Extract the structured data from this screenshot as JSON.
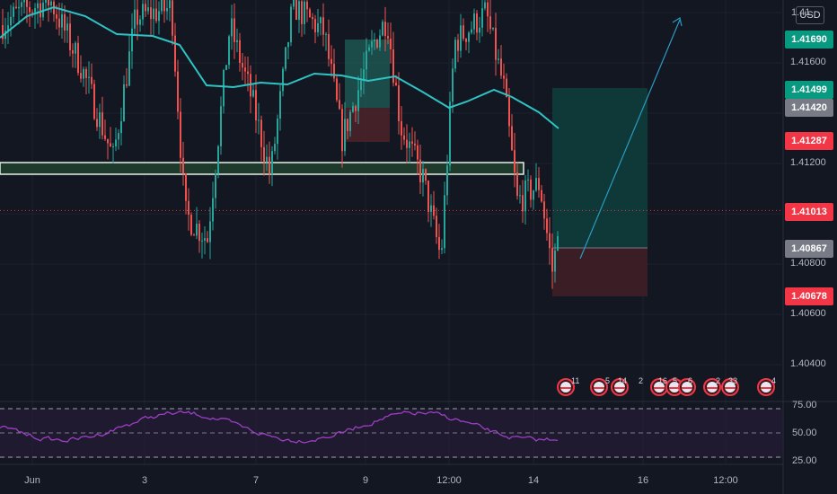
{
  "chart_data": {
    "type": "candlestick",
    "pair_currency": "USD",
    "price_axis": {
      "min": 1.403,
      "max": 1.419,
      "ticks": [
        "1.41800",
        "1.41600",
        "1.41200",
        "1.41000",
        "1.40800",
        "1.40600",
        "1.40400"
      ],
      "top_label": "1.41"
    },
    "price_tags": [
      {
        "label": "1.41690",
        "value": 1.4169,
        "color": "#089981",
        "kind": "take-profit"
      },
      {
        "label": "1.41499",
        "value": 1.41499,
        "color": "#089981",
        "kind": "moving-average"
      },
      {
        "label": "1.41420",
        "value": 1.4142,
        "color": "#787b86",
        "kind": "level"
      },
      {
        "label": "1.41287",
        "value": 1.41287,
        "color": "#f23645",
        "kind": "level"
      },
      {
        "label": "1.41013",
        "value": 1.41013,
        "color": "#f23645",
        "kind": "last-price"
      },
      {
        "label": "1.40867",
        "value": 1.40867,
        "color": "#787b86",
        "kind": "entry"
      },
      {
        "label": "1.40678",
        "value": 1.40678,
        "color": "#f23645",
        "kind": "stop-loss"
      }
    ],
    "time_axis": {
      "labels": [
        "Jun",
        "3",
        "7",
        "9",
        "12:00",
        "14",
        "16",
        "12:00"
      ]
    },
    "rsi": {
      "levels": [
        "75.00",
        "50.00",
        "25.00"
      ],
      "upper": 70,
      "middle": 50,
      "lower": 30
    },
    "events": [
      "11",
      "5",
      "14",
      "2",
      "16",
      "5",
      "6",
      "2",
      "33",
      "4"
    ],
    "colors": {
      "up": "#26a69a",
      "down": "#ef5350",
      "ma": "#2ec4c4",
      "rsi": "#9c3fc5",
      "profit_zone": "#0f3a3a",
      "loss_zone": "#3a1d25",
      "arrow": "#2a9bc0"
    }
  }
}
